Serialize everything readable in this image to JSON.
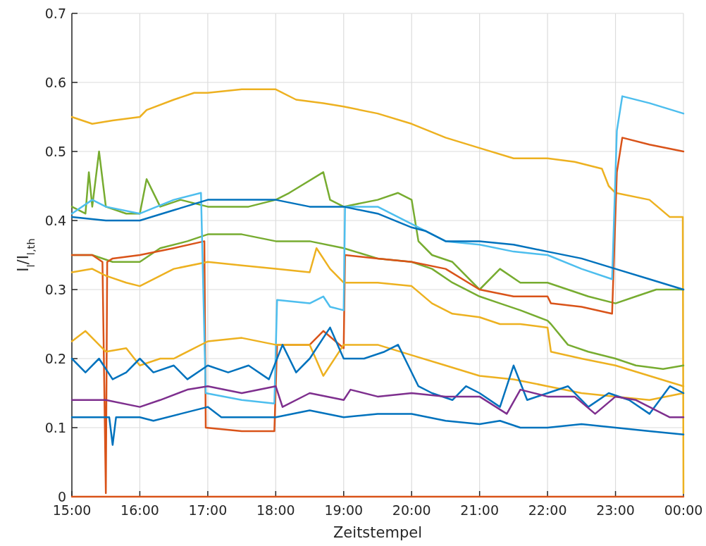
{
  "chart_data": {
    "type": "line",
    "xlabel": "Zeitstempel",
    "ylabel": "I$_{l}$/I$_{l,th}$",
    "xlim": [
      15,
      24
    ],
    "ylim": [
      0,
      0.7
    ],
    "xticks": [
      {
        "value": 15,
        "label": "15:00"
      },
      {
        "value": 16,
        "label": "16:00"
      },
      {
        "value": 17,
        "label": "17:00"
      },
      {
        "value": 18,
        "label": "18:00"
      },
      {
        "value": 19,
        "label": "19:00"
      },
      {
        "value": 20,
        "label": "20:00"
      },
      {
        "value": 21,
        "label": "21:00"
      },
      {
        "value": 22,
        "label": "22:00"
      },
      {
        "value": 23,
        "label": "23:00"
      },
      {
        "value": 24,
        "label": "00:00"
      }
    ],
    "yticks": [
      0,
      0.1,
      0.2,
      0.3,
      0.4,
      0.5,
      0.6,
      0.7
    ],
    "grid": true,
    "marker": "none",
    "line_style": "solid",
    "series": [
      {
        "color": "#edb120",
        "x": [
          15,
          15.3,
          15.6,
          16,
          16.1,
          16.5,
          16.8,
          17,
          17.5,
          18,
          18.3,
          18.7,
          19,
          19.5,
          20,
          20.5,
          21,
          21.5,
          22,
          22.4,
          22.8,
          22.9,
          23,
          23.5,
          23.8,
          23.99,
          24
        ],
        "values": [
          0.55,
          0.54,
          0.545,
          0.55,
          0.56,
          0.575,
          0.585,
          0.585,
          0.59,
          0.59,
          0.575,
          0.57,
          0.565,
          0.555,
          0.54,
          0.52,
          0.505,
          0.49,
          0.49,
          0.485,
          0.475,
          0.45,
          0.44,
          0.43,
          0.405,
          0.405,
          0.005
        ]
      },
      {
        "color": "#77ac30",
        "x": [
          15,
          15.2,
          15.25,
          15.3,
          15.4,
          15.5,
          15.8,
          16,
          16.1,
          16.3,
          16.6,
          17,
          17.3,
          17.6,
          18,
          18.2,
          18.7,
          18.8,
          19,
          19.5,
          19.8,
          20,
          20.1,
          20.3,
          20.6,
          21,
          21.3,
          21.6,
          22,
          22.3,
          22.6,
          23,
          23.3,
          23.6,
          24
        ],
        "values": [
          0.42,
          0.41,
          0.47,
          0.42,
          0.5,
          0.42,
          0.41,
          0.41,
          0.46,
          0.42,
          0.43,
          0.42,
          0.42,
          0.42,
          0.43,
          0.44,
          0.47,
          0.43,
          0.42,
          0.43,
          0.44,
          0.43,
          0.37,
          0.35,
          0.34,
          0.3,
          0.33,
          0.31,
          0.31,
          0.3,
          0.29,
          0.28,
          0.29,
          0.3,
          0.3
        ]
      },
      {
        "color": "#77ac30",
        "x": [
          15,
          15.3,
          15.6,
          16,
          16.3,
          16.7,
          17,
          17.5,
          18,
          18.5,
          19,
          19.5,
          20,
          20.3,
          20.6,
          21,
          21.3,
          21.6,
          22,
          22.05,
          22.3,
          22.6,
          23,
          23.3,
          23.7,
          24
        ],
        "values": [
          0.35,
          0.35,
          0.34,
          0.34,
          0.36,
          0.37,
          0.38,
          0.38,
          0.37,
          0.37,
          0.36,
          0.345,
          0.34,
          0.33,
          0.31,
          0.29,
          0.28,
          0.27,
          0.255,
          0.25,
          0.22,
          0.21,
          0.2,
          0.19,
          0.185,
          0.19
        ]
      },
      {
        "color": "#d95319",
        "x": [
          15,
          15.3,
          15.45,
          15.5,
          15.52,
          15.6,
          16,
          16.5,
          16.95,
          16.97,
          17.5,
          17.98,
          18.02,
          18.5,
          18.7,
          19,
          19.02,
          19.5,
          20,
          20.5,
          21,
          21.5,
          22,
          22.05,
          22.5,
          22.95,
          23.02,
          23.1,
          23.5,
          24
        ],
        "values": [
          0.35,
          0.35,
          0.34,
          0.005,
          0.34,
          0.345,
          0.35,
          0.36,
          0.37,
          0.1,
          0.095,
          0.095,
          0.22,
          0.22,
          0.24,
          0.215,
          0.35,
          0.345,
          0.34,
          0.33,
          0.3,
          0.29,
          0.29,
          0.28,
          0.275,
          0.265,
          0.47,
          0.52,
          0.51,
          0.5
        ]
      },
      {
        "color": "#edb120",
        "x": [
          15,
          15.3,
          15.5,
          15.8,
          16,
          16.5,
          17,
          17.5,
          18,
          18.5,
          18.6,
          18.8,
          19,
          19.5,
          20,
          20.3,
          20.6,
          21,
          21.3,
          21.6,
          22,
          22.05,
          22.5,
          23,
          23.5,
          24
        ],
        "values": [
          0.325,
          0.33,
          0.32,
          0.31,
          0.305,
          0.33,
          0.34,
          0.335,
          0.33,
          0.325,
          0.36,
          0.33,
          0.31,
          0.31,
          0.305,
          0.28,
          0.265,
          0.26,
          0.25,
          0.25,
          0.245,
          0.21,
          0.2,
          0.19,
          0.175,
          0.16
        ]
      },
      {
        "color": "#4dbeee",
        "x": [
          15,
          15.3,
          15.5,
          16,
          16.5,
          16.9,
          16.97,
          17.5,
          17.98,
          18.02,
          18.5,
          18.7,
          18.8,
          19,
          19.02,
          19.5,
          20,
          20.5,
          21,
          21.5,
          22,
          22.5,
          22.95,
          23.02,
          23.1,
          23.5,
          24
        ],
        "values": [
          0.41,
          0.43,
          0.42,
          0.41,
          0.43,
          0.44,
          0.15,
          0.14,
          0.135,
          0.285,
          0.28,
          0.29,
          0.275,
          0.27,
          0.42,
          0.42,
          0.395,
          0.37,
          0.365,
          0.355,
          0.35,
          0.33,
          0.315,
          0.53,
          0.58,
          0.57,
          0.555
        ]
      },
      {
        "color": "#0072bd",
        "x": [
          15,
          15.5,
          16,
          16.5,
          17,
          17.5,
          18,
          18.5,
          19,
          19.5,
          20,
          20.2,
          20.5,
          21,
          21.5,
          22,
          22.5,
          23,
          23.5,
          24
        ],
        "values": [
          0.405,
          0.4,
          0.4,
          0.415,
          0.43,
          0.43,
          0.43,
          0.42,
          0.42,
          0.41,
          0.39,
          0.385,
          0.37,
          0.37,
          0.365,
          0.355,
          0.345,
          0.33,
          0.315,
          0.3
        ]
      },
      {
        "color": "#edb120",
        "x": [
          15,
          15.2,
          15.5,
          15.8,
          16,
          16.3,
          16.5,
          17,
          17.5,
          18,
          18.5,
          18.7,
          19,
          19.5,
          20,
          20.5,
          21,
          21.5,
          22,
          22.5,
          23,
          23.5,
          24
        ],
        "values": [
          0.225,
          0.24,
          0.21,
          0.215,
          0.19,
          0.2,
          0.2,
          0.225,
          0.23,
          0.22,
          0.22,
          0.175,
          0.22,
          0.22,
          0.205,
          0.19,
          0.175,
          0.17,
          0.16,
          0.15,
          0.145,
          0.14,
          0.15
        ]
      },
      {
        "color": "#0072bd",
        "x": [
          15,
          15.2,
          15.4,
          15.6,
          15.8,
          16,
          16.2,
          16.5,
          16.7,
          17,
          17.3,
          17.6,
          17.9,
          18.1,
          18.3,
          18.5,
          18.8,
          19,
          19.3,
          19.6,
          19.8,
          20.1,
          20.3,
          20.6,
          20.8,
          21,
          21.3,
          21.5,
          21.7,
          22,
          22.3,
          22.6,
          22.9,
          23.2,
          23.5,
          23.8,
          24
        ],
        "values": [
          0.2,
          0.18,
          0.2,
          0.17,
          0.18,
          0.2,
          0.18,
          0.19,
          0.17,
          0.19,
          0.18,
          0.19,
          0.17,
          0.22,
          0.18,
          0.2,
          0.245,
          0.2,
          0.2,
          0.21,
          0.22,
          0.16,
          0.15,
          0.14,
          0.16,
          0.15,
          0.13,
          0.19,
          0.14,
          0.15,
          0.16,
          0.13,
          0.15,
          0.14,
          0.12,
          0.16,
          0.15
        ]
      },
      {
        "color": "#7e2f8e",
        "x": [
          15,
          15.5,
          16,
          16.3,
          16.7,
          17,
          17.5,
          18,
          18.1,
          18.5,
          19,
          19.1,
          19.5,
          20,
          20.5,
          21,
          21.4,
          21.6,
          22,
          22.4,
          22.7,
          23,
          23.3,
          23.8,
          24
        ],
        "values": [
          0.14,
          0.14,
          0.13,
          0.14,
          0.155,
          0.16,
          0.15,
          0.16,
          0.13,
          0.15,
          0.14,
          0.155,
          0.145,
          0.15,
          0.145,
          0.145,
          0.12,
          0.155,
          0.145,
          0.145,
          0.12,
          0.145,
          0.14,
          0.115,
          0.115
        ]
      },
      {
        "color": "#0072bd",
        "x": [
          15,
          15.55,
          15.6,
          15.65,
          16,
          16.2,
          16.6,
          17,
          17.2,
          17.6,
          18,
          18.5,
          19,
          19.5,
          20,
          20.5,
          21,
          21.3,
          21.6,
          22,
          22.5,
          23,
          23.5,
          24
        ],
        "values": [
          0.115,
          0.115,
          0.075,
          0.115,
          0.115,
          0.11,
          0.12,
          0.13,
          0.115,
          0.115,
          0.115,
          0.125,
          0.115,
          0.12,
          0.12,
          0.11,
          0.105,
          0.11,
          0.1,
          0.1,
          0.105,
          0.1,
          0.095,
          0.09
        ]
      },
      {
        "color": "#d95319",
        "x": [
          15,
          24
        ],
        "values": [
          0,
          0
        ]
      }
    ]
  }
}
